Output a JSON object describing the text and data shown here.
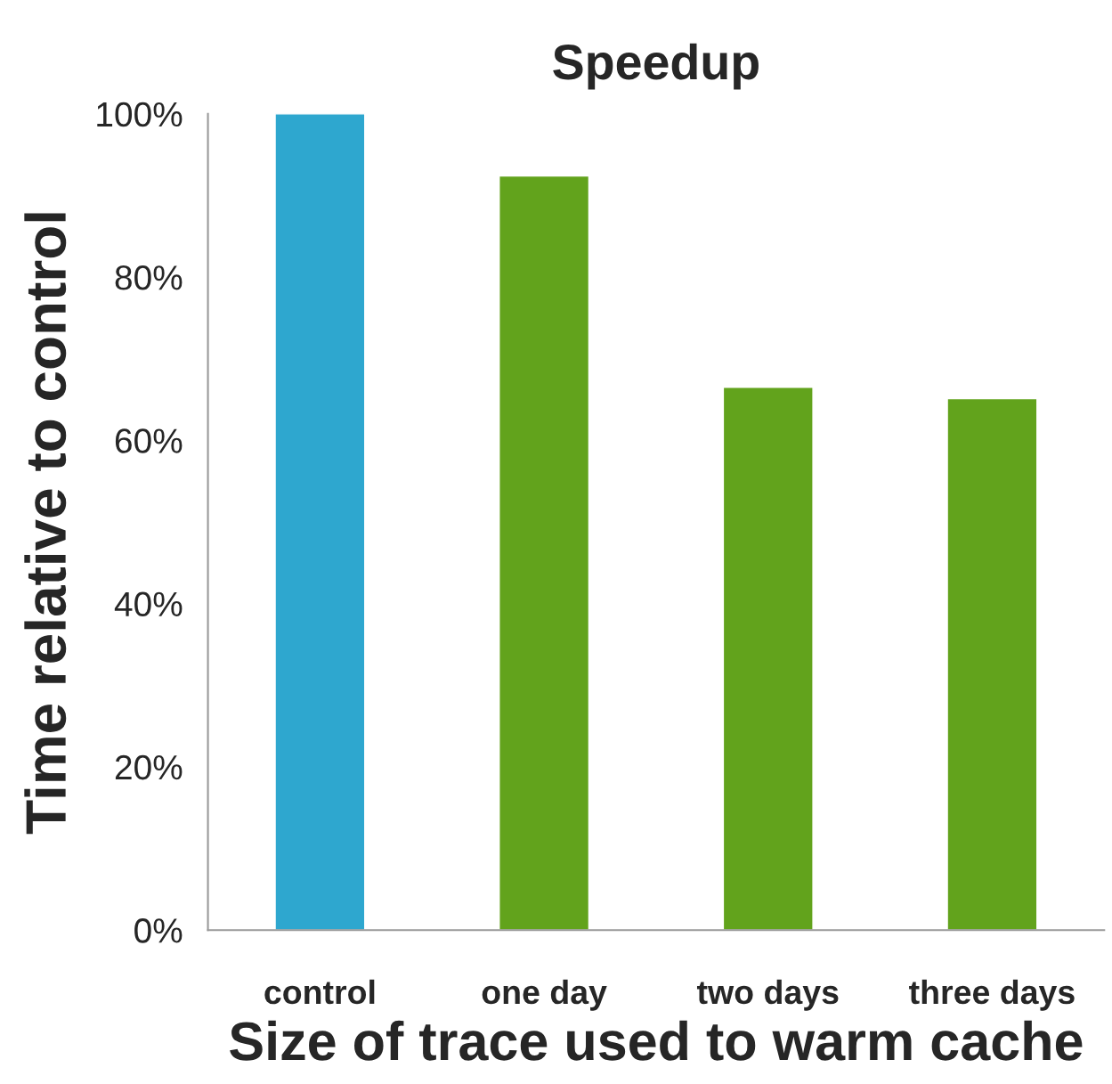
{
  "chart_data": {
    "type": "bar",
    "title": "Speedup",
    "xlabel": "Size of trace used to warm cache",
    "ylabel": "Time relative to control",
    "categories": [
      "control",
      "one day",
      "two days",
      "three days"
    ],
    "values": [
      100,
      92.4,
      66.5,
      65.1
    ],
    "colors": [
      "#2ea7cf",
      "#62a31c",
      "#62a31c",
      "#62a31c"
    ],
    "ylim": [
      0,
      100
    ],
    "yticks": [
      {
        "value": 0,
        "label": "0%"
      },
      {
        "value": 20,
        "label": "20%"
      },
      {
        "value": 40,
        "label": "40%"
      },
      {
        "value": 60,
        "label": "60%"
      },
      {
        "value": 80,
        "label": "80%"
      },
      {
        "value": 100,
        "label": "100%"
      }
    ],
    "grid": false,
    "legend": false
  }
}
